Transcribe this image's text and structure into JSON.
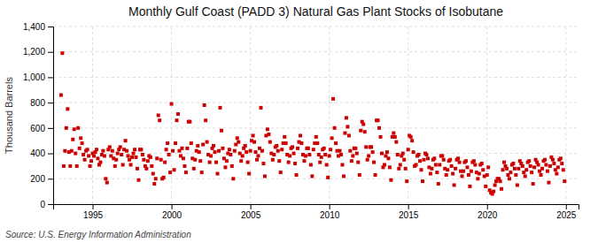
{
  "chart_data": {
    "type": "scatter",
    "title": "Monthly Gulf Coast (PADD 3) Natural Gas Plant Stocks of Isobutane",
    "ylabel": "Thousand Barrels",
    "source": "Source: U.S. Energy Information Administration",
    "color": "#cc0000",
    "marker": "square",
    "grid": true,
    "xlim": [
      1992.5,
      2025.8
    ],
    "ylim": [
      0,
      1400
    ],
    "xticks": [
      1995,
      2000,
      2005,
      2010,
      2015,
      2020,
      2025
    ],
    "yticks": [
      0,
      200,
      400,
      600,
      800,
      {
        "value": 1000,
        "label": "1,000"
      },
      {
        "value": 1200,
        "label": "1,200"
      },
      {
        "value": 1400,
        "label": "1,400"
      }
    ],
    "x": [
      1993.0,
      1993.083,
      1993.167,
      1993.25,
      1993.333,
      1993.417,
      1993.5,
      1993.583,
      1993.667,
      1993.75,
      1993.833,
      1993.917,
      1994.0,
      1994.083,
      1994.167,
      1994.25,
      1994.333,
      1994.417,
      1994.5,
      1994.583,
      1994.667,
      1994.75,
      1994.833,
      1994.917,
      1995.0,
      1995.083,
      1995.167,
      1995.25,
      1995.333,
      1995.417,
      1995.5,
      1995.583,
      1995.667,
      1995.75,
      1995.833,
      1995.917,
      1996.0,
      1996.083,
      1996.167,
      1996.25,
      1996.333,
      1996.417,
      1996.5,
      1996.583,
      1996.667,
      1996.75,
      1996.833,
      1996.917,
      1997.0,
      1997.083,
      1997.167,
      1997.25,
      1997.333,
      1997.417,
      1997.5,
      1997.583,
      1997.667,
      1997.75,
      1997.833,
      1997.917,
      1998.0,
      1998.083,
      1998.167,
      1998.25,
      1998.333,
      1998.417,
      1998.5,
      1998.583,
      1998.667,
      1998.75,
      1998.833,
      1998.917,
      1999.0,
      1999.083,
      1999.167,
      1999.25,
      1999.333,
      1999.417,
      1999.5,
      1999.583,
      1999.667,
      1999.75,
      1999.833,
      1999.917,
      2000.0,
      2000.083,
      2000.167,
      2000.25,
      2000.333,
      2000.417,
      2000.5,
      2000.583,
      2000.667,
      2000.75,
      2000.833,
      2000.917,
      2001.0,
      2001.083,
      2001.167,
      2001.25,
      2001.333,
      2001.417,
      2001.5,
      2001.583,
      2001.667,
      2001.75,
      2001.833,
      2001.917,
      2002.0,
      2002.083,
      2002.167,
      2002.25,
      2002.333,
      2002.417,
      2002.5,
      2002.583,
      2002.667,
      2002.75,
      2002.833,
      2002.917,
      2003.0,
      2003.083,
      2003.167,
      2003.25,
      2003.333,
      2003.417,
      2003.5,
      2003.583,
      2003.667,
      2003.75,
      2003.833,
      2003.917,
      2004.0,
      2004.083,
      2004.167,
      2004.25,
      2004.333,
      2004.417,
      2004.5,
      2004.583,
      2004.667,
      2004.75,
      2004.833,
      2004.917,
      2005.0,
      2005.083,
      2005.167,
      2005.25,
      2005.333,
      2005.417,
      2005.5,
      2005.583,
      2005.667,
      2005.75,
      2005.833,
      2005.917,
      2006.0,
      2006.083,
      2006.167,
      2006.25,
      2006.333,
      2006.417,
      2006.5,
      2006.583,
      2006.667,
      2006.75,
      2006.833,
      2006.917,
      2007.0,
      2007.083,
      2007.167,
      2007.25,
      2007.333,
      2007.417,
      2007.5,
      2007.583,
      2007.667,
      2007.75,
      2007.833,
      2007.917,
      2008.0,
      2008.083,
      2008.167,
      2008.25,
      2008.333,
      2008.417,
      2008.5,
      2008.583,
      2008.667,
      2008.75,
      2008.833,
      2008.917,
      2009.0,
      2009.083,
      2009.167,
      2009.25,
      2009.333,
      2009.417,
      2009.5,
      2009.583,
      2009.667,
      2009.75,
      2009.833,
      2009.917,
      2010.0,
      2010.083,
      2010.167,
      2010.25,
      2010.333,
      2010.417,
      2010.5,
      2010.583,
      2010.667,
      2010.75,
      2010.833,
      2010.917,
      2011.0,
      2011.083,
      2011.167,
      2011.25,
      2011.333,
      2011.417,
      2011.5,
      2011.583,
      2011.667,
      2011.75,
      2011.833,
      2011.917,
      2012.0,
      2012.083,
      2012.167,
      2012.25,
      2012.333,
      2012.417,
      2012.5,
      2012.583,
      2012.667,
      2012.75,
      2012.833,
      2012.917,
      2013.0,
      2013.083,
      2013.167,
      2013.25,
      2013.333,
      2013.417,
      2013.5,
      2013.583,
      2013.667,
      2013.75,
      2013.833,
      2013.917,
      2014.0,
      2014.083,
      2014.167,
      2014.25,
      2014.333,
      2014.417,
      2014.5,
      2014.583,
      2014.667,
      2014.75,
      2014.833,
      2014.917,
      2015.0,
      2015.083,
      2015.167,
      2015.25,
      2015.333,
      2015.417,
      2015.5,
      2015.583,
      2015.667,
      2015.75,
      2015.833,
      2015.917,
      2016.0,
      2016.083,
      2016.167,
      2016.25,
      2016.333,
      2016.417,
      2016.5,
      2016.583,
      2016.667,
      2016.75,
      2016.833,
      2016.917,
      2017.0,
      2017.083,
      2017.167,
      2017.25,
      2017.333,
      2017.417,
      2017.5,
      2017.583,
      2017.667,
      2017.75,
      2017.833,
      2017.917,
      2018.0,
      2018.083,
      2018.167,
      2018.25,
      2018.333,
      2018.417,
      2018.5,
      2018.583,
      2018.667,
      2018.75,
      2018.833,
      2018.917,
      2019.0,
      2019.083,
      2019.167,
      2019.25,
      2019.333,
      2019.417,
      2019.5,
      2019.583,
      2019.667,
      2019.75,
      2019.833,
      2019.917,
      2020.0,
      2020.083,
      2020.167,
      2020.25,
      2020.333,
      2020.417,
      2020.5,
      2020.583,
      2020.667,
      2020.75,
      2020.833,
      2020.917,
      2021.0,
      2021.083,
      2021.167,
      2021.25,
      2021.333,
      2021.417,
      2021.5,
      2021.583,
      2021.667,
      2021.75,
      2021.833,
      2021.917,
      2022.0,
      2022.083,
      2022.167,
      2022.25,
      2022.333,
      2022.417,
      2022.5,
      2022.583,
      2022.667,
      2022.75,
      2022.833,
      2022.917,
      2023.0,
      2023.083,
      2023.167,
      2023.25,
      2023.333,
      2023.417,
      2023.5,
      2023.583,
      2023.667,
      2023.75,
      2023.833,
      2023.917,
      2024.0,
      2024.083,
      2024.167,
      2024.25,
      2024.333,
      2024.417,
      2024.5,
      2024.583,
      2024.667,
      2024.75,
      2024.833,
      2024.917
    ],
    "values": [
      860,
      1190,
      300,
      420,
      600,
      750,
      410,
      300,
      420,
      510,
      590,
      400,
      300,
      600,
      440,
      520,
      480,
      390,
      350,
      420,
      430,
      380,
      300,
      340,
      400,
      380,
      410,
      430,
      360,
      310,
      330,
      390,
      420,
      380,
      200,
      170,
      430,
      450,
      380,
      420,
      360,
      300,
      350,
      400,
      430,
      450,
      390,
      310,
      430,
      500,
      420,
      380,
      350,
      310,
      370,
      400,
      430,
      370,
      280,
      190,
      430,
      430,
      390,
      350,
      300,
      280,
      340,
      380,
      370,
      300,
      240,
      160,
      200,
      360,
      700,
      660,
      350,
      200,
      210,
      330,
      430,
      480,
      390,
      250,
      790,
      420,
      270,
      480,
      660,
      710,
      420,
      380,
      440,
      360,
      300,
      250,
      440,
      650,
      650,
      480,
      360,
      280,
      350,
      420,
      460,
      410,
      340,
      250,
      470,
      780,
      660,
      490,
      390,
      330,
      380,
      440,
      460,
      410,
      330,
      240,
      420,
      760,
      580,
      440,
      360,
      290,
      340,
      400,
      430,
      390,
      300,
      200,
      420,
      470,
      520,
      490,
      400,
      340,
      380,
      440,
      460,
      410,
      330,
      240,
      420,
      500,
      540,
      490,
      410,
      350,
      380,
      440,
      760,
      420,
      320,
      220,
      540,
      590,
      550,
      490,
      400,
      350,
      390,
      450,
      460,
      420,
      340,
      250,
      430,
      480,
      530,
      480,
      390,
      330,
      380,
      440,
      450,
      400,
      320,
      230,
      440,
      490,
      540,
      480,
      390,
      340,
      380,
      440,
      440,
      390,
      310,
      220,
      430,
      480,
      530,
      480,
      390,
      330,
      370,
      430,
      440,
      390,
      310,
      210,
      380,
      430,
      520,
      830,
      600,
      480,
      420,
      380,
      420,
      390,
      310,
      220,
      560,
      680,
      610,
      540,
      420,
      340,
      380,
      440,
      440,
      400,
      330,
      230,
      580,
      650,
      630,
      570,
      450,
      350,
      380,
      450,
      450,
      410,
      330,
      230,
      660,
      660,
      600,
      530,
      400,
      290,
      310,
      380,
      410,
      360,
      290,
      190,
      530,
      560,
      530,
      490,
      390,
      280,
      310,
      380,
      400,
      350,
      280,
      180,
      430,
      540,
      530,
      500,
      410,
      300,
      310,
      380,
      390,
      340,
      270,
      180,
      350,
      400,
      390,
      360,
      290,
      240,
      280,
      350,
      360,
      310,
      250,
      160,
      310,
      380,
      380,
      350,
      280,
      230,
      270,
      340,
      350,
      300,
      240,
      150,
      280,
      350,
      360,
      330,
      260,
      220,
      260,
      330,
      340,
      290,
      230,
      140,
      260,
      330,
      340,
      310,
      250,
      200,
      240,
      310,
      320,
      270,
      220,
      140,
      230,
      290,
      110,
      90,
      80,
      100,
      150,
      180,
      200,
      200,
      180,
      120,
      270,
      330,
      300,
      280,
      230,
      200,
      250,
      310,
      320,
      280,
      230,
      150,
      280,
      340,
      320,
      300,
      250,
      220,
      270,
      330,
      340,
      300,
      250,
      160,
      290,
      350,
      330,
      310,
      260,
      230,
      280,
      340,
      350,
      310,
      260,
      170,
      300,
      370,
      350,
      320,
      270,
      240,
      290,
      350,
      360,
      320,
      270,
      180
    ]
  }
}
